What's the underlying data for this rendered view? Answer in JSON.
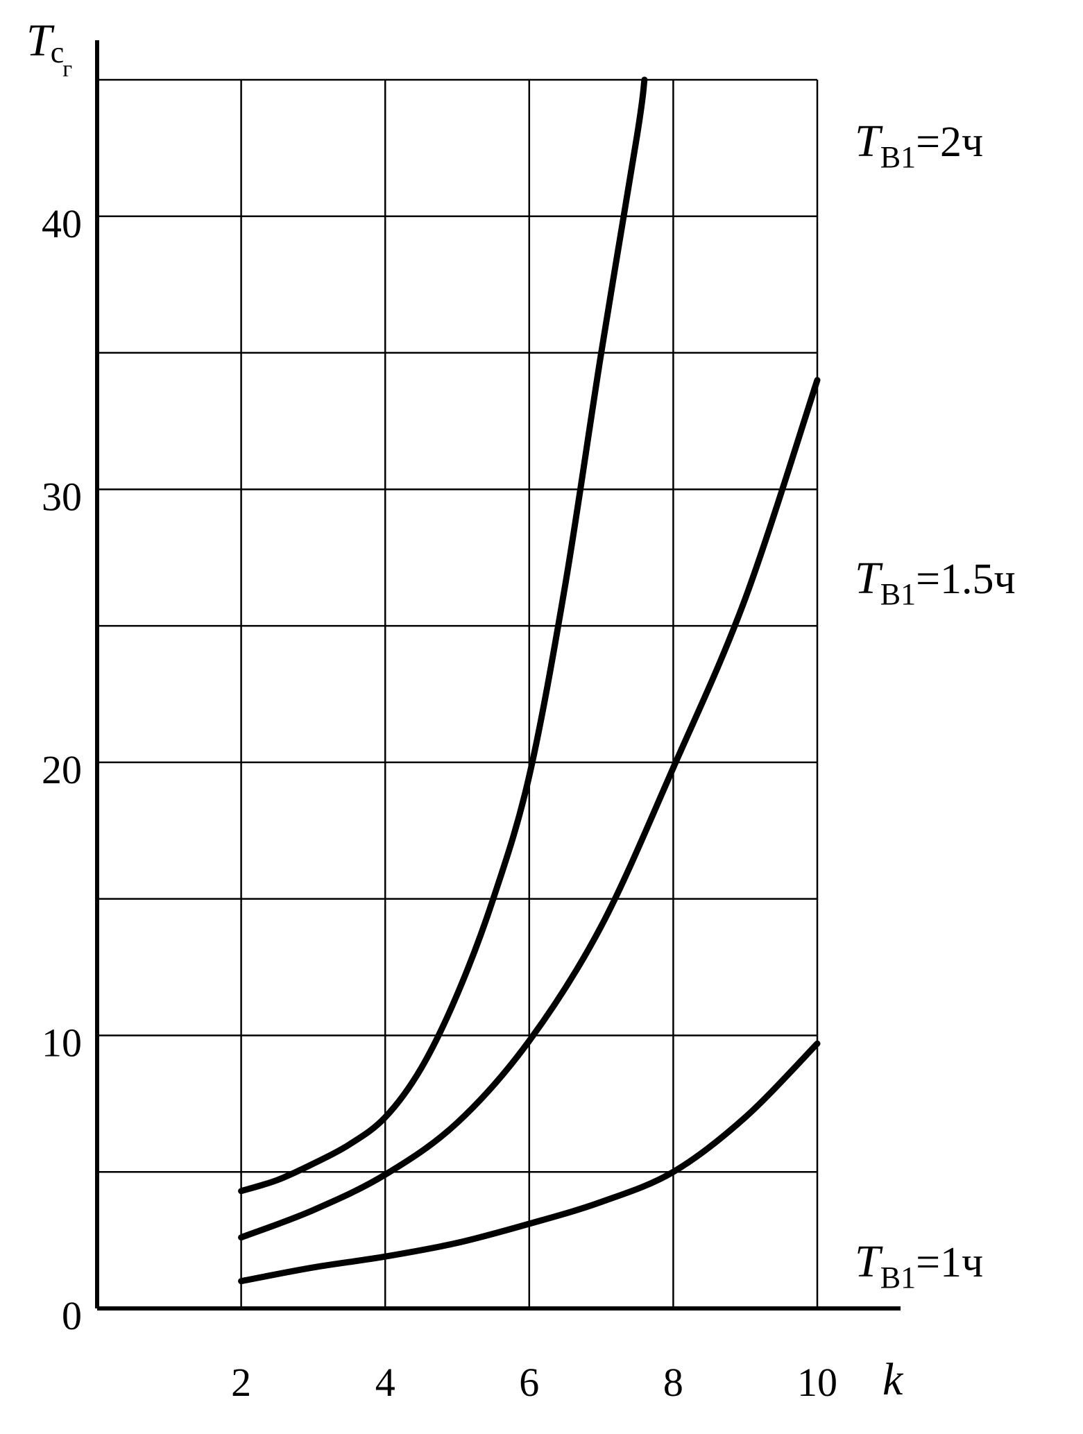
{
  "chart_data": {
    "type": "line",
    "ylabel": {
      "main": "T",
      "sub1": "c",
      "sub2": "г"
    },
    "xlabel": "k",
    "xlim": [
      0,
      10
    ],
    "ylim": [
      0,
      45
    ],
    "grid": true,
    "x_ticks": [
      2,
      4,
      6,
      8,
      10
    ],
    "x_tick_labels": [
      "2",
      "4",
      "6",
      "8",
      "10"
    ],
    "y_gridlines": [
      0,
      5,
      10,
      15,
      20,
      25,
      30,
      35,
      40,
      45
    ],
    "y_ticks": [
      0,
      10,
      20,
      30,
      40
    ],
    "y_tick_labels": [
      "0",
      "10",
      "20",
      "30",
      "40"
    ],
    "series": [
      {
        "label": {
          "main": "T",
          "sub": "В1",
          "rest": "=2ч"
        },
        "x": [
          2,
          2.5,
          3,
          3.5,
          4,
          4.5,
          5,
          5.5,
          6,
          6.5,
          7,
          7.5,
          7.6
        ],
        "y": [
          4.3,
          4.7,
          5.3,
          6.0,
          7.0,
          8.8,
          11.5,
          15.0,
          19.5,
          26.5,
          35.0,
          43.0,
          45.0
        ]
      },
      {
        "label": {
          "main": "T",
          "sub": "В1",
          "rest": "=1.5ч"
        },
        "x": [
          2,
          3,
          4,
          5,
          6,
          7,
          8,
          9,
          10
        ],
        "y": [
          2.6,
          3.6,
          4.9,
          6.8,
          9.8,
          14.0,
          19.8,
          26.0,
          34.0
        ]
      },
      {
        "label": {
          "main": "T",
          "sub": "В1",
          "rest": "=1ч"
        },
        "x": [
          2,
          3,
          4,
          5,
          6,
          7,
          8,
          9,
          10
        ],
        "y": [
          1.0,
          1.5,
          1.9,
          2.4,
          3.1,
          3.9,
          5.0,
          7.0,
          9.7
        ]
      }
    ]
  }
}
